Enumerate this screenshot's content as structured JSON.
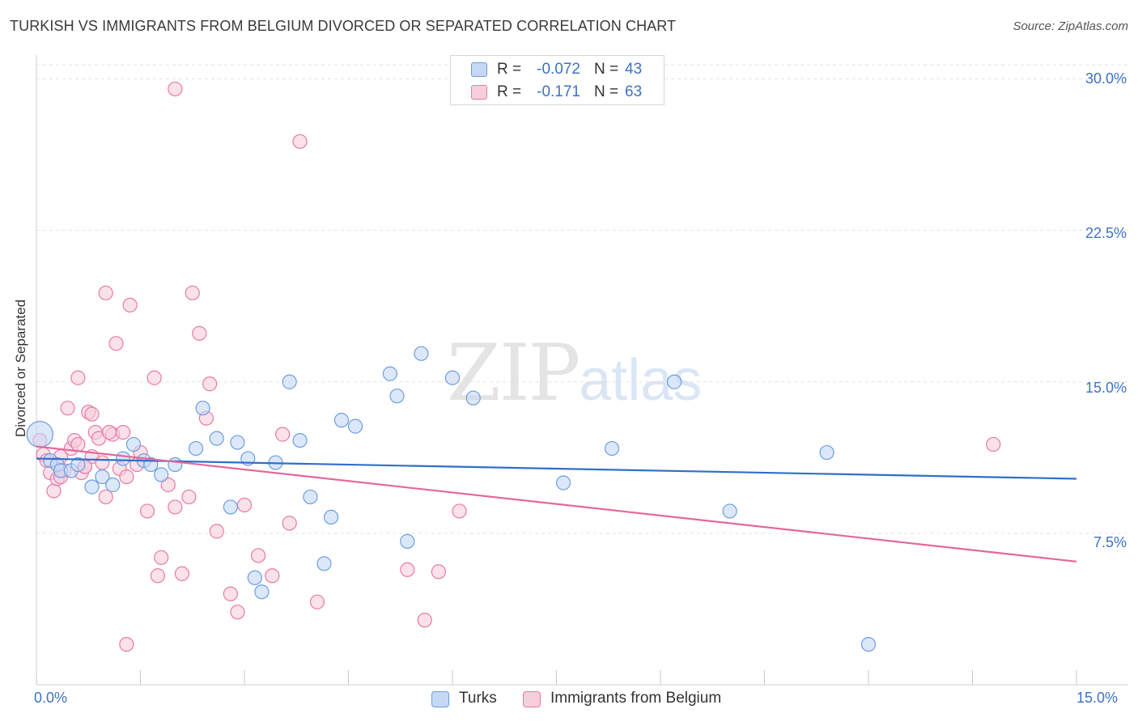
{
  "title": "TURKISH VS IMMIGRANTS FROM BELGIUM DIVORCED OR SEPARATED CORRELATION CHART",
  "source": "Source: ZipAtlas.com",
  "watermark": {
    "zip": "ZIP",
    "atlas": "atlas"
  },
  "colors": {
    "turks": "#6b9ee0",
    "turks_fill": "#c5d9f5",
    "belgium": "#e87aa5",
    "belgium_fill": "#f8cddc",
    "turks_line": "#2f6fca",
    "belgium_line": "#e2699a",
    "tick_text": "#3d72c4"
  },
  "stats": [
    {
      "series": "Turks",
      "r_label": "R =",
      "r_value": "-0.072",
      "n_label": "N =",
      "n_value": "43"
    },
    {
      "series": "Immigrants from Belgium",
      "r_label": "R =",
      "r_value": "-0.171",
      "n_label": "N =",
      "n_value": "63"
    }
  ],
  "legend": [
    {
      "label": "Turks"
    },
    {
      "label": "Immigrants from Belgium"
    }
  ],
  "chart_data": {
    "type": "scatter",
    "title": "TURKISH VS IMMIGRANTS FROM BELGIUM DIVORCED OR SEPARATED CORRELATION CHART",
    "xlabel": "",
    "ylabel": "Divorced or Separated",
    "xlim": [
      0,
      15
    ],
    "ylim": [
      0,
      30.7
    ],
    "x_tick_labels": [
      "0.0%",
      "15.0%"
    ],
    "y_ticks": [
      7.5,
      15.0,
      22.5,
      30.0
    ],
    "y_tick_labels": [
      "7.5%",
      "15.0%",
      "22.5%",
      "30.0%"
    ],
    "grid": "horizontal dashed",
    "legend_position": "bottom-center",
    "series": [
      {
        "name": "Turks",
        "trend": {
          "x": [
            0,
            15
          ],
          "y": [
            11.2,
            10.2
          ]
        },
        "points": [
          [
            0.05,
            12.4
          ],
          [
            0.2,
            11.1
          ],
          [
            0.3,
            10.9
          ],
          [
            0.35,
            10.6
          ],
          [
            0.5,
            10.6
          ],
          [
            0.6,
            10.9
          ],
          [
            0.8,
            9.8
          ],
          [
            0.95,
            10.3
          ],
          [
            1.1,
            9.9
          ],
          [
            1.25,
            11.2
          ],
          [
            1.4,
            11.9
          ],
          [
            1.55,
            11.1
          ],
          [
            1.65,
            10.9
          ],
          [
            1.8,
            10.4
          ],
          [
            2.0,
            10.9
          ],
          [
            2.3,
            11.7
          ],
          [
            2.4,
            13.7
          ],
          [
            2.6,
            12.2
          ],
          [
            2.8,
            8.8
          ],
          [
            2.9,
            12.0
          ],
          [
            3.05,
            11.2
          ],
          [
            3.15,
            5.3
          ],
          [
            3.25,
            4.6
          ],
          [
            3.45,
            11.0
          ],
          [
            3.65,
            15.0
          ],
          [
            3.8,
            12.1
          ],
          [
            3.95,
            9.3
          ],
          [
            4.15,
            6.0
          ],
          [
            4.25,
            8.3
          ],
          [
            4.4,
            13.1
          ],
          [
            4.6,
            12.8
          ],
          [
            5.1,
            15.4
          ],
          [
            5.2,
            14.3
          ],
          [
            5.35,
            7.1
          ],
          [
            5.55,
            16.4
          ],
          [
            6.0,
            15.2
          ],
          [
            6.3,
            14.2
          ],
          [
            7.6,
            10.0
          ],
          [
            8.3,
            11.7
          ],
          [
            9.2,
            15.0
          ],
          [
            10.0,
            8.6
          ],
          [
            11.4,
            11.5
          ],
          [
            12.0,
            2.0
          ]
        ]
      },
      {
        "name": "Immigrants from Belgium",
        "trend": {
          "x": [
            0,
            15
          ],
          "y": [
            11.8,
            6.1
          ]
        },
        "points": [
          [
            0.05,
            12.1
          ],
          [
            0.1,
            11.4
          ],
          [
            0.15,
            11.1
          ],
          [
            0.2,
            10.5
          ],
          [
            0.25,
            9.6
          ],
          [
            0.3,
            10.2
          ],
          [
            0.35,
            11.3
          ],
          [
            0.4,
            10.6
          ],
          [
            0.45,
            13.7
          ],
          [
            0.5,
            11.7
          ],
          [
            0.55,
            12.1
          ],
          [
            0.6,
            11.9
          ],
          [
            0.6,
            15.2
          ],
          [
            0.65,
            10.5
          ],
          [
            0.7,
            10.8
          ],
          [
            0.75,
            13.5
          ],
          [
            0.8,
            13.4
          ],
          [
            0.8,
            11.3
          ],
          [
            0.85,
            12.5
          ],
          [
            0.9,
            12.2
          ],
          [
            0.95,
            11.0
          ],
          [
            1.0,
            9.3
          ],
          [
            1.0,
            19.4
          ],
          [
            1.1,
            12.4
          ],
          [
            1.15,
            16.9
          ],
          [
            1.2,
            10.7
          ],
          [
            1.25,
            12.5
          ],
          [
            1.3,
            10.3
          ],
          [
            1.35,
            18.8
          ],
          [
            1.45,
            10.9
          ],
          [
            1.5,
            11.5
          ],
          [
            1.6,
            8.6
          ],
          [
            1.7,
            15.2
          ],
          [
            1.75,
            5.4
          ],
          [
            1.8,
            6.3
          ],
          [
            1.9,
            9.9
          ],
          [
            2.0,
            8.8
          ],
          [
            2.1,
            5.5
          ],
          [
            2.2,
            9.3
          ],
          [
            2.25,
            19.4
          ],
          [
            2.35,
            17.4
          ],
          [
            2.45,
            13.2
          ],
          [
            2.5,
            14.9
          ],
          [
            2.6,
            7.6
          ],
          [
            2.8,
            4.5
          ],
          [
            2.9,
            3.6
          ],
          [
            3.0,
            8.9
          ],
          [
            3.2,
            6.4
          ],
          [
            3.4,
            5.4
          ],
          [
            3.55,
            12.4
          ],
          [
            3.65,
            8.0
          ],
          [
            3.8,
            26.9
          ],
          [
            1.3,
            2.0
          ],
          [
            4.05,
            4.1
          ],
          [
            2.0,
            29.5
          ],
          [
            5.35,
            5.7
          ],
          [
            5.8,
            5.6
          ],
          [
            5.6,
            3.2
          ],
          [
            6.1,
            8.6
          ],
          [
            13.8,
            11.9
          ],
          [
            1.05,
            12.5
          ],
          [
            0.35,
            10.3
          ],
          [
            0.7,
            10.8
          ]
        ]
      }
    ]
  }
}
